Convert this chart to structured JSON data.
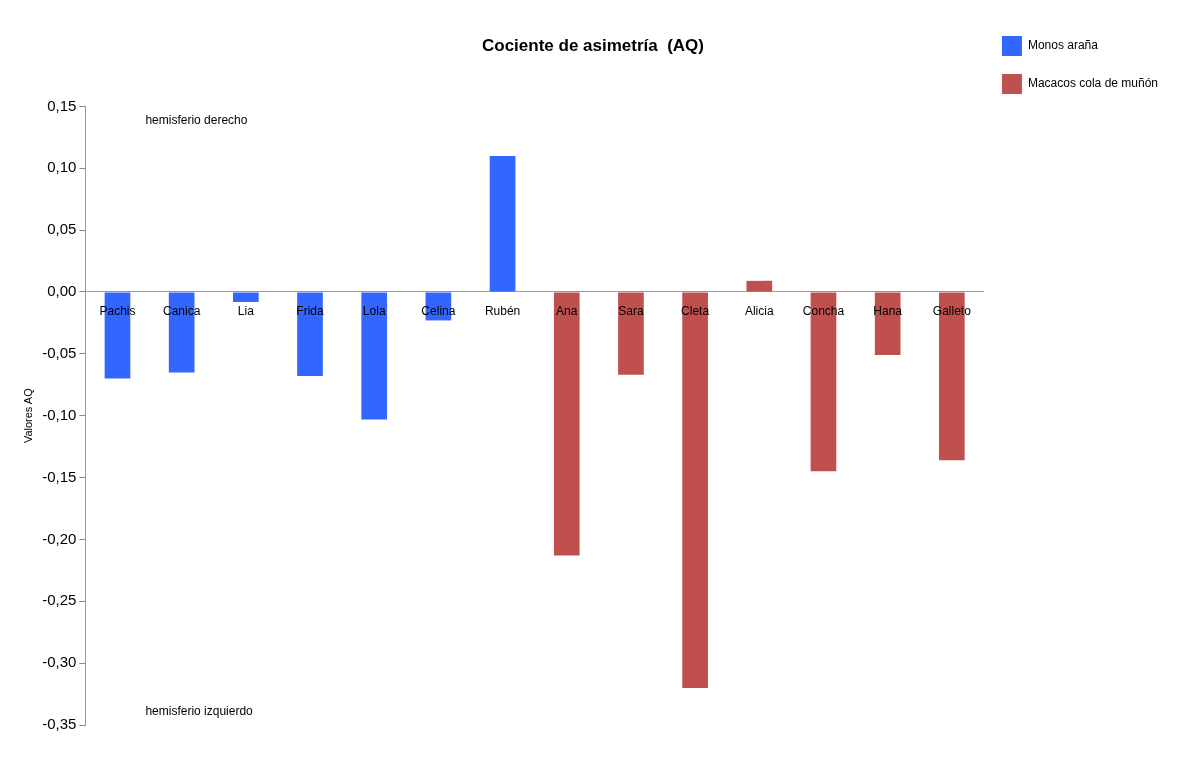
{
  "chart_data": {
    "type": "bar",
    "title": "Cociente de asimetría  (AQ)",
    "ylabel": "Valores AQ",
    "categories": [
      "Pachis",
      "Canica",
      "Lia",
      "Frida",
      "Lola",
      "Celina",
      "Rubén",
      "Ana",
      "Sara",
      "Cleta",
      "Alicia",
      "Concha",
      "Hana",
      "Galleto"
    ],
    "series": [
      {
        "name": "Monos araña",
        "color": "#3366ff",
        "values": [
          -0.07,
          -0.065,
          -0.008,
          -0.068,
          -0.103,
          -0.023,
          0.11,
          null,
          null,
          null,
          null,
          null,
          null,
          null
        ]
      },
      {
        "name": "Macacos cola de muñón",
        "color": "#c0504d",
        "values": [
          null,
          null,
          null,
          null,
          null,
          null,
          null,
          -0.213,
          -0.067,
          -0.32,
          0.009,
          -0.145,
          -0.051,
          -0.136
        ]
      }
    ],
    "ylim": [
      -0.35,
      0.15
    ],
    "yticks": [
      {
        "value": 0.15,
        "label": "0,15"
      },
      {
        "value": 0.1,
        "label": "0,10"
      },
      {
        "value": 0.05,
        "label": "0,05"
      },
      {
        "value": 0,
        "label": "0,00"
      },
      {
        "value": -0.05,
        "label": "-0,05"
      },
      {
        "value": -0.1,
        "label": "-0,10"
      },
      {
        "value": -0.15,
        "label": "-0,15"
      },
      {
        "value": -0.2,
        "label": "-0,20"
      },
      {
        "value": -0.25,
        "label": "-0,25"
      },
      {
        "value": -0.3,
        "label": "-0,30"
      },
      {
        "value": -0.35,
        "label": "-0,35"
      }
    ],
    "annotations": [
      "hemisferio derecho",
      "hemisferio izquierdo"
    ],
    "grid": false,
    "legend": "top right"
  }
}
